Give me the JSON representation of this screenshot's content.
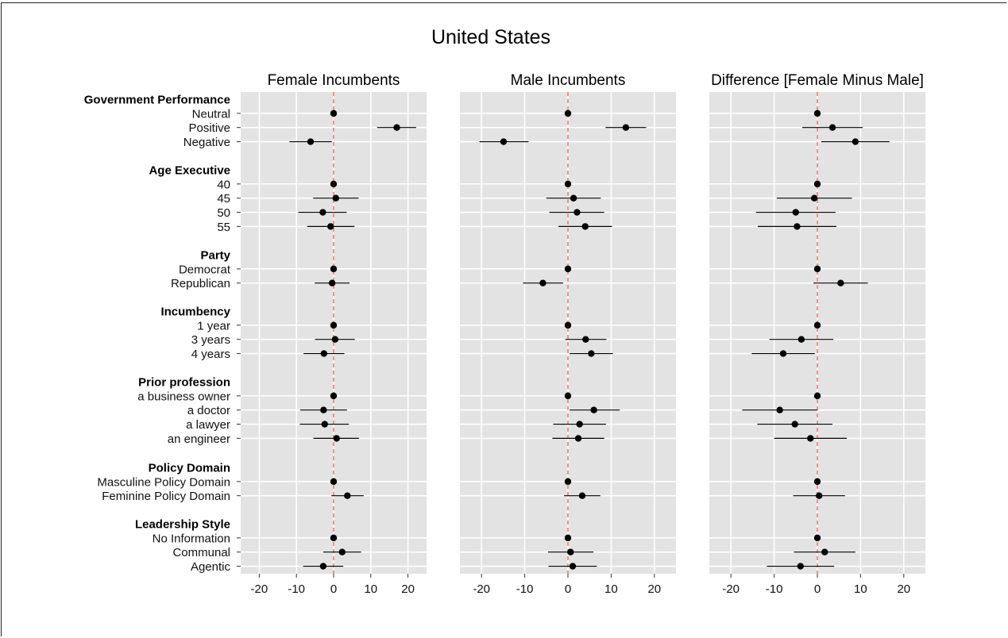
{
  "chart_data": {
    "type": "scatter",
    "title": "United States",
    "xlim": [
      -25,
      25
    ],
    "x_ticks": [
      "-20",
      "-10",
      "0",
      "10",
      "20"
    ],
    "x_tick_values": [
      -20,
      -10,
      0,
      10,
      20
    ],
    "reference_line": 0,
    "grid": true,
    "legend": "none",
    "colors": {
      "panel_bg": "#e3e3e3",
      "grid": "#ffffff",
      "point": "#000000",
      "ref_line": "#e8605a"
    },
    "groups": [
      {
        "label": "Government Performance",
        "levels": [
          "Neutral",
          "Positive",
          "Negative"
        ]
      },
      {
        "label": "Age Executive",
        "levels": [
          "40",
          "45",
          "50",
          "55"
        ]
      },
      {
        "label": "Party",
        "levels": [
          "Democrat",
          "Republican"
        ]
      },
      {
        "label": "Incumbency",
        "levels": [
          "1 year",
          "3 years",
          "4 years"
        ]
      },
      {
        "label": "Prior profession",
        "levels": [
          "a business owner",
          "a doctor",
          "a lawyer",
          "an engineer"
        ]
      },
      {
        "label": "Policy Domain",
        "levels": [
          "Masculine Policy Domain",
          "Feminine Policy Domain"
        ]
      },
      {
        "label": "Leadership Style",
        "levels": [
          "No Information",
          "Communal",
          "Agentic"
        ]
      }
    ],
    "panels": [
      {
        "title": "Female Incumbents",
        "estimates": [
          [
            0,
            17.0,
            -6.2
          ],
          [
            0,
            0.6,
            -2.9,
            -0.8
          ],
          [
            0,
            -0.4
          ],
          [
            0,
            0.4,
            -2.6
          ],
          [
            0,
            -2.7,
            -2.4,
            0.8
          ],
          [
            0,
            3.7
          ],
          [
            0,
            2.3,
            -2.8
          ]
        ],
        "lower": [
          [
            0,
            11.7,
            -11.9
          ],
          [
            0,
            -5.5,
            -9.5,
            -7.1
          ],
          [
            0,
            -5.1
          ],
          [
            0,
            -5.0,
            -8.1
          ],
          [
            0,
            -9.0,
            -9.1,
            -5.4
          ],
          [
            0,
            -0.6
          ],
          [
            0,
            -2.8,
            -8.2
          ]
        ],
        "upper": [
          [
            0,
            22.2,
            -0.5
          ],
          [
            0,
            6.7,
            3.5,
            5.6
          ],
          [
            0,
            4.3
          ],
          [
            0,
            5.7,
            2.9
          ],
          [
            0,
            3.6,
            4.1,
            6.8
          ],
          [
            0,
            8.1
          ],
          [
            0,
            7.4,
            2.6
          ]
        ]
      },
      {
        "title": "Male Incumbents",
        "estimates": [
          [
            0,
            13.4,
            -14.9
          ],
          [
            0,
            1.3,
            2.1,
            4.0
          ],
          [
            0,
            -5.8
          ],
          [
            0,
            4.1,
            5.4
          ],
          [
            0,
            6.0,
            2.7,
            2.4
          ],
          [
            0,
            3.3
          ],
          [
            0,
            0.6,
            1.1
          ]
        ],
        "lower": [
          [
            0,
            8.7,
            -20.5
          ],
          [
            0,
            -5.0,
            -4.3,
            -2.2
          ],
          [
            0,
            -10.4
          ],
          [
            0,
            -0.6,
            0.4
          ],
          [
            0,
            0.4,
            -3.4,
            -3.6
          ],
          [
            0,
            -0.9
          ],
          [
            0,
            -4.6,
            -4.5
          ]
        ],
        "upper": [
          [
            0,
            18.1,
            -9.1
          ],
          [
            0,
            7.6,
            8.4,
            10.2
          ],
          [
            0,
            -1.1
          ],
          [
            0,
            8.9,
            10.4
          ],
          [
            0,
            12.0,
            8.8,
            8.4
          ],
          [
            0,
            7.5
          ],
          [
            0,
            5.9,
            6.7
          ]
        ]
      },
      {
        "title": "Difference [Female Minus Male]",
        "estimates": [
          [
            0,
            3.5,
            8.8
          ],
          [
            0,
            -0.7,
            -5.0,
            -4.7
          ],
          [
            0,
            5.4
          ],
          [
            0,
            -3.7,
            -7.9
          ],
          [
            0,
            -8.7,
            -5.2,
            -1.6
          ],
          [
            0,
            0.4
          ],
          [
            0,
            1.7,
            -3.9
          ]
        ],
        "lower": [
          [
            0,
            -3.5,
            0.9
          ],
          [
            0,
            -9.4,
            -14.2,
            -13.8
          ],
          [
            0,
            -0.9
          ],
          [
            0,
            -11.1,
            -15.2
          ],
          [
            0,
            -17.4,
            -13.9,
            -10.0
          ],
          [
            0,
            -5.6
          ],
          [
            0,
            -5.4,
            -11.7
          ]
        ],
        "upper": [
          [
            0,
            10.5,
            16.7
          ],
          [
            0,
            8.0,
            4.2,
            4.4
          ],
          [
            0,
            11.7
          ],
          [
            0,
            3.7,
            -0.6
          ],
          [
            0,
            0.0,
            3.5,
            6.8
          ],
          [
            0,
            6.4
          ],
          [
            0,
            8.8,
            3.9
          ]
        ]
      }
    ]
  }
}
